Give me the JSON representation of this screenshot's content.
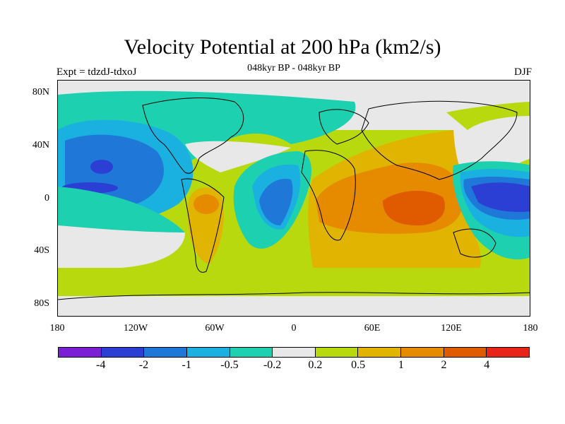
{
  "title": "Velocity Potential at 200 hPa (km2/s)",
  "subtitle": "048kyr BP - 048kyr BP",
  "left_label": "Expt = tdzdJ-tdxoJ",
  "right_label": "DJF",
  "lat_ticks": [
    "80N",
    "40N",
    "0",
    "40S",
    "80S"
  ],
  "lon_ticks": [
    "180",
    "120W",
    "60W",
    "0",
    "60E",
    "120E",
    "180"
  ],
  "colorbar": {
    "colors": [
      "#7a1fd6",
      "#2b3fd4",
      "#1f78d8",
      "#1ab0e0",
      "#1dd0b0",
      "#e8e8e8",
      "#b9d90f",
      "#e0b400",
      "#e68a00",
      "#e05a00",
      "#e8241a",
      "#e60000"
    ],
    "labels": [
      "-4",
      "-2",
      "-1",
      "-0.5",
      "-0.2",
      "0.2",
      "0.5",
      "1",
      "2",
      "4"
    ]
  },
  "chart_data": {
    "type": "heatmap",
    "title": "Velocity Potential at 200 hPa (km2/s)",
    "subtitle": "048kyr BP - 048kyr BP",
    "xlabel": "",
    "ylabel": "",
    "x_ticks": [
      "180",
      "120W",
      "60W",
      "0",
      "60E",
      "120E",
      "180"
    ],
    "y_ticks": [
      "80N",
      "40N",
      "0",
      "40S",
      "80S"
    ],
    "levels": [
      -4,
      -2,
      -1,
      -0.5,
      -0.2,
      0.2,
      0.5,
      1,
      2,
      4
    ],
    "field_summary": [
      {
        "region": "Western Pacific / Maritime Continent",
        "value_range": "-2 to -4"
      },
      {
        "region": "Central-East North Pacific",
        "value_range": "-1 to -2"
      },
      {
        "region": "Central Atlantic",
        "value_range": "-0.5 to -2"
      },
      {
        "region": "Indian Ocean / South Asia",
        "value_range": "1 to 4"
      },
      {
        "region": "Southern Ocean / South Atlantic",
        "value_range": "0.2 to 1"
      },
      {
        "region": "South America",
        "value_range": "0.2 to 1"
      }
    ]
  }
}
